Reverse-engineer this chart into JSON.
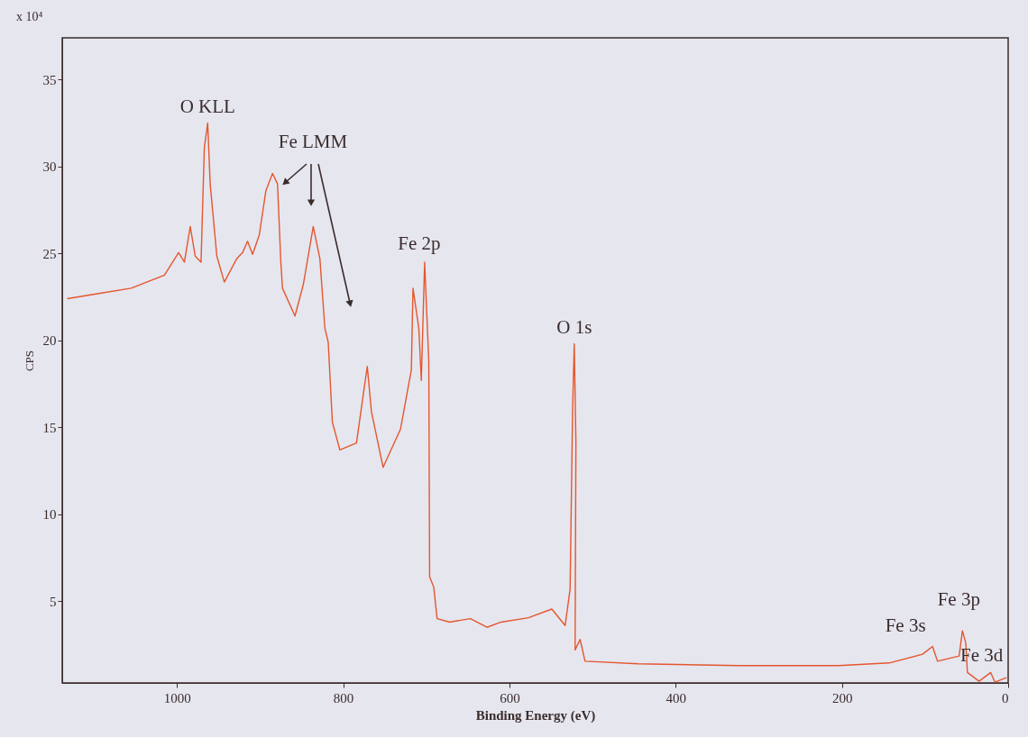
{
  "chart_data": {
    "type": "line",
    "xlabel": "Binding Energy (eV)",
    "ylabel": "CPS",
    "annotations": [
      "x 10⁴",
      {
        "text": "O KLL",
        "x": 963,
        "y": 32.5
      },
      "Fe LMM",
      {
        "text": "Fe 2p",
        "x": 702,
        "y": 24.5
      },
      {
        "text": "O 1s",
        "x": 522,
        "y": 19.8
      },
      {
        "text": "Fe 3s",
        "x": 91,
        "y": 2.4
      },
      {
        "text": "Fe 3p",
        "x": 55,
        "y": 3.3
      },
      {
        "text": "Fe 3d",
        "x": 21,
        "y": 0.9
      }
    ],
    "x": [
      1132,
      1094,
      1055,
      1015,
      998,
      991,
      984,
      978,
      971,
      967,
      963,
      960,
      952,
      943,
      928,
      921,
      915,
      909,
      901,
      893,
      885,
      879,
      875,
      873,
      858,
      848,
      836,
      828,
      822,
      818,
      813,
      804,
      784,
      774,
      771,
      766,
      752,
      731,
      718,
      716,
      709,
      706,
      702,
      697,
      696,
      691,
      687,
      672,
      647,
      627,
      610,
      577,
      549,
      533,
      527,
      524,
      522,
      520,
      521,
      515,
      509,
      445,
      324,
      204,
      143,
      103,
      91,
      85,
      59,
      55,
      51,
      49,
      35,
      21,
      16,
      2
    ],
    "series": [
      {
        "color": "#e4572e",
        "values": [
          22.4,
          22.7,
          23.0,
          23.75,
          25.05,
          24.5,
          26.55,
          24.85,
          24.5,
          31.1,
          32.5,
          29.0,
          24.85,
          23.35,
          24.7,
          25.05,
          25.7,
          24.95,
          26.05,
          28.6,
          29.6,
          29.0,
          24.5,
          23.0,
          21.4,
          23.2,
          26.55,
          24.7,
          20.7,
          19.9,
          15.3,
          13.7,
          14.1,
          17.5,
          18.5,
          15.9,
          12.7,
          14.9,
          18.3,
          23.0,
          20.7,
          17.7,
          24.5,
          18.8,
          6.4,
          5.8,
          4.0,
          3.8,
          4.0,
          3.5,
          3.8,
          4.05,
          4.55,
          3.6,
          5.7,
          16.0,
          19.8,
          14.1,
          2.2,
          2.8,
          1.55,
          1.4,
          1.3,
          1.3,
          1.45,
          1.95,
          2.4,
          1.55,
          1.85,
          3.3,
          2.6,
          0.9,
          0.4,
          0.9,
          0.35,
          0.6
        ]
      }
    ],
    "xlim": [
      1138,
      0
    ],
    "ylim": [
      0.3,
      37.4
    ],
    "xticks": [
      {
        "value": 1000,
        "label": "1000"
      },
      800,
      600,
      400,
      200,
      0
    ],
    "yticks": [
      5,
      10,
      15,
      20,
      25,
      30,
      35
    ],
    "grid": false
  }
}
